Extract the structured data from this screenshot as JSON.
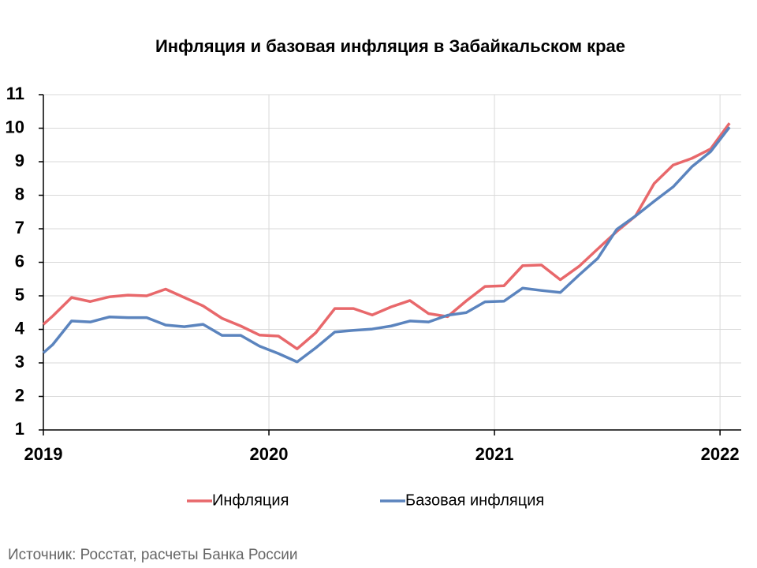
{
  "chart_data": {
    "type": "line",
    "title": "Инфляция и базовая инфляция в Забайкальском крае",
    "source": "Источник: Росстат, расчеты Банка России",
    "x": [
      2019.0,
      2019.042,
      2019.125,
      2019.208,
      2019.292,
      2019.375,
      2019.458,
      2019.542,
      2019.625,
      2019.708,
      2019.792,
      2019.875,
      2019.958,
      2020.042,
      2020.125,
      2020.208,
      2020.292,
      2020.375,
      2020.458,
      2020.542,
      2020.625,
      2020.708,
      2020.792,
      2020.875,
      2020.958,
      2021.042,
      2021.125,
      2021.208,
      2021.292,
      2021.375,
      2021.458,
      2021.542,
      2021.625,
      2021.708,
      2021.792,
      2021.875,
      2021.958,
      2022.042
    ],
    "series": [
      {
        "name": "Инфляция",
        "color": "#e8686b",
        "values": [
          4.15,
          4.4,
          4.95,
          4.83,
          4.97,
          5.02,
          5.0,
          5.2,
          4.95,
          4.7,
          4.33,
          4.1,
          3.83,
          3.8,
          3.42,
          3.9,
          4.62,
          4.62,
          4.43,
          4.67,
          4.86,
          4.47,
          4.38,
          4.85,
          5.28,
          5.3,
          5.9,
          5.92,
          5.48,
          5.88,
          6.4,
          6.92,
          7.38,
          8.35,
          8.9,
          9.1,
          9.38,
          10.15
        ]
      },
      {
        "name": "Базовая инфляция",
        "color": "#5b84be",
        "values": [
          3.3,
          3.55,
          4.25,
          4.22,
          4.37,
          4.35,
          4.35,
          4.13,
          4.08,
          4.15,
          3.82,
          3.82,
          3.5,
          3.28,
          3.03,
          3.45,
          3.92,
          3.97,
          4.01,
          4.1,
          4.25,
          4.22,
          4.42,
          4.5,
          4.82,
          4.84,
          5.23,
          5.16,
          5.1,
          5.62,
          6.12,
          6.98,
          7.38,
          7.82,
          8.25,
          8.85,
          9.3,
          10.03
        ]
      }
    ],
    "xlim": [
      2019,
      2022.094
    ],
    "xticks": [
      2019,
      2020,
      2021,
      2022
    ],
    "ylim": [
      1,
      11
    ],
    "yticks": [
      1,
      2,
      3,
      4,
      5,
      6,
      7,
      8,
      9,
      10,
      11
    ],
    "grid": true,
    "legend": "bottom"
  }
}
